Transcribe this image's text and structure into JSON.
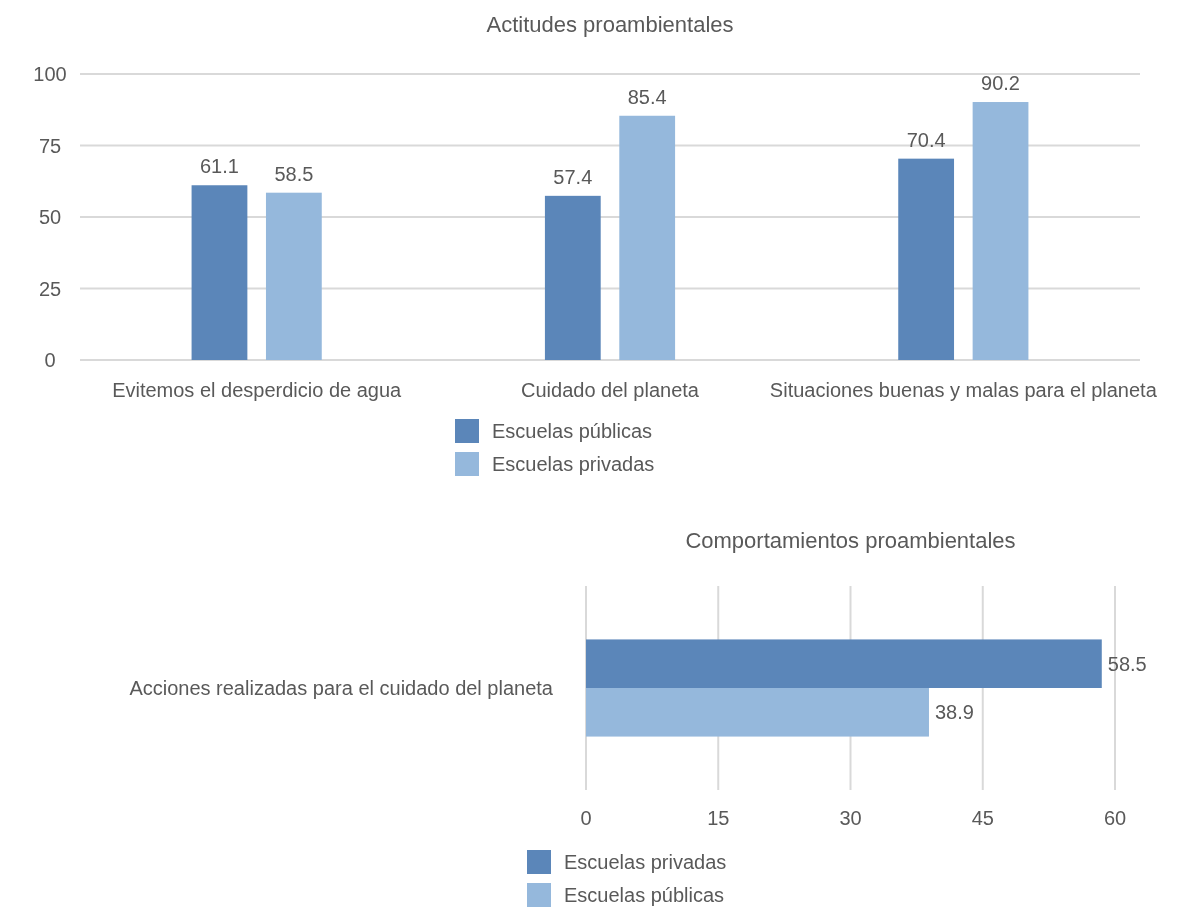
{
  "chart_data": [
    {
      "type": "bar",
      "title": "Actitudes proambientales",
      "categories": [
        "Evitemos el desperdicio de agua",
        "Cuidado del planeta",
        "Situaciones buenas y malas para el planeta"
      ],
      "series": [
        {
          "name": "Escuelas públicas",
          "color": "#5b86b9",
          "values": [
            61.1,
            57.4,
            70.4
          ]
        },
        {
          "name": "Escuelas privadas",
          "color": "#95b8dc",
          "values": [
            58.5,
            85.4,
            90.2
          ]
        }
      ],
      "ylim": [
        0,
        100
      ],
      "yticks": [
        0,
        25,
        50,
        75,
        100
      ],
      "grid": "y",
      "legend": "bottom",
      "data_labels": true
    },
    {
      "type": "bar",
      "orientation": "horizontal",
      "title": "Comportamientos proambientales",
      "categories": [
        "Acciones realizadas para el cuidado del planeta"
      ],
      "series": [
        {
          "name": "Escuelas privadas",
          "color": "#5b86b9",
          "values": [
            58.5
          ]
        },
        {
          "name": "Escuelas públicas",
          "color": "#95b8dc",
          "values": [
            38.9
          ]
        }
      ],
      "xlim": [
        0,
        60
      ],
      "xticks": [
        0,
        15,
        30,
        45,
        60
      ],
      "grid": "x",
      "legend": "bottom",
      "data_labels": true
    }
  ]
}
